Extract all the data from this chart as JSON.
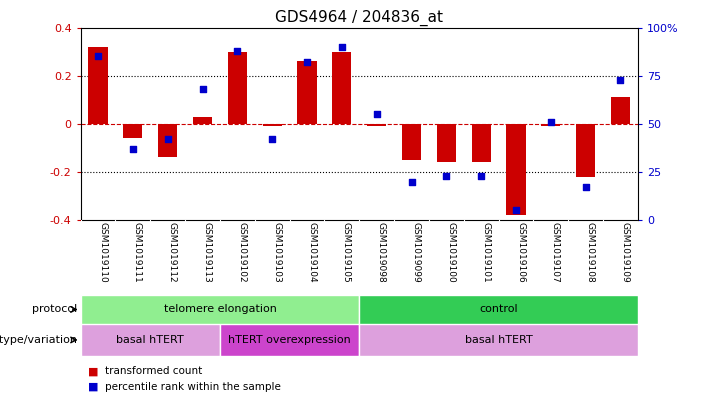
{
  "title": "GDS4964 / 204836_at",
  "categories": [
    "GSM1019110",
    "GSM1019111",
    "GSM1019112",
    "GSM1019113",
    "GSM1019102",
    "GSM1019103",
    "GSM1019104",
    "GSM1019105",
    "GSM1019098",
    "GSM1019099",
    "GSM1019100",
    "GSM1019101",
    "GSM1019106",
    "GSM1019107",
    "GSM1019108",
    "GSM1019109"
  ],
  "bar_values": [
    0.32,
    -0.06,
    -0.14,
    0.03,
    0.3,
    -0.01,
    0.26,
    0.3,
    -0.01,
    -0.15,
    -0.16,
    -0.16,
    -0.38,
    -0.01,
    -0.22,
    0.11
  ],
  "dot_values": [
    85,
    37,
    42,
    68,
    88,
    42,
    82,
    90,
    55,
    20,
    23,
    23,
    5,
    51,
    17,
    73
  ],
  "ylim_left": [
    -0.4,
    0.4
  ],
  "ylim_right": [
    0,
    100
  ],
  "yticks_left": [
    -0.4,
    -0.2,
    0.0,
    0.2,
    0.4
  ],
  "yticks_right": [
    0,
    25,
    50,
    75,
    100
  ],
  "bar_color": "#cc0000",
  "dot_color": "#0000cc",
  "zero_line_color": "#cc0000",
  "grid_color": "#000000",
  "protocol_groups": [
    {
      "label": "telomere elongation",
      "start": 0,
      "end": 8,
      "color": "#90ee90"
    },
    {
      "label": "control",
      "start": 8,
      "end": 16,
      "color": "#33cc55"
    }
  ],
  "genotype_groups": [
    {
      "label": "basal hTERT",
      "start": 0,
      "end": 4,
      "color": "#dda0dd"
    },
    {
      "label": "hTERT overexpression",
      "start": 4,
      "end": 8,
      "color": "#cc44cc"
    },
    {
      "label": "basal hTERT",
      "start": 8,
      "end": 16,
      "color": "#dda0dd"
    }
  ],
  "protocol_label": "protocol",
  "genotype_label": "genotype/variation",
  "legend_items": [
    {
      "label": "transformed count",
      "color": "#cc0000"
    },
    {
      "label": "percentile rank within the sample",
      "color": "#0000cc"
    }
  ],
  "bg_color": "#ffffff",
  "plot_bg": "#ffffff",
  "tick_label_area_color": "#cccccc"
}
